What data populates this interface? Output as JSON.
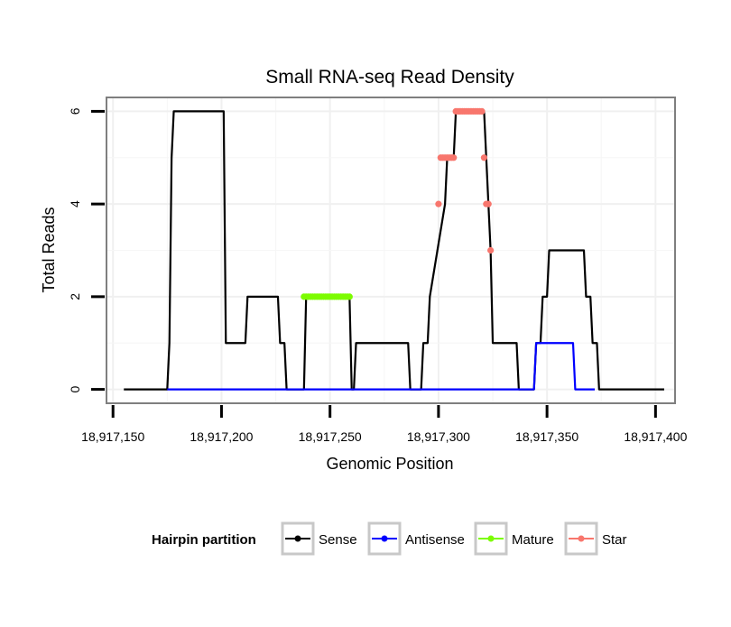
{
  "chart_data": {
    "type": "line",
    "title": "Small RNA-seq Read Density",
    "xlabel": "Genomic Position",
    "ylabel": "Total Reads",
    "xlim": [
      18917147,
      18917409
    ],
    "ylim": [
      -0.3,
      6.3
    ],
    "x_ticks": [
      18917150,
      18917200,
      18917250,
      18917300,
      18917350,
      18917400
    ],
    "x_tick_labels": [
      "18,917,150",
      "18,917,200",
      "18,917,250",
      "18,917,300",
      "18,917,350",
      "18,917,400"
    ],
    "y_ticks": [
      0,
      2,
      4,
      6
    ],
    "y_tick_labels": [
      "0",
      "2",
      "4",
      "6"
    ],
    "grid": true,
    "legend_title": "Hairpin partition",
    "legend_position": "bottom",
    "series": [
      {
        "name": "Sense",
        "color": "#000000",
        "style": "line",
        "x": [
          18917155,
          18917175,
          18917176,
          18917177,
          18917178,
          18917201,
          18917202,
          18917203,
          18917211,
          18917212,
          18917226,
          18917227,
          18917229,
          18917230,
          18917238,
          18917239,
          18917240,
          18917259,
          18917260,
          18917261,
          18917262,
          18917263,
          18917286,
          18917287,
          18917292,
          18917293,
          18917295,
          18917296,
          18917303,
          18917304,
          18917305,
          18917306,
          18917307,
          18917308,
          18917321,
          18917322,
          18917323,
          18917324,
          18917325,
          18917326,
          18917336,
          18917337,
          18917344,
          18917345,
          18917346,
          18917347,
          18917348,
          18917349,
          18917350,
          18917351,
          18917352,
          18917353,
          18917354,
          18917355,
          18917356,
          18917357,
          18917367,
          18917368,
          18917370,
          18917371,
          18917373,
          18917374,
          18917404
        ],
        "y": [
          0,
          0,
          1,
          5,
          6,
          6,
          1,
          1,
          1,
          2,
          2,
          1,
          1,
          0,
          0,
          2,
          2,
          2,
          0,
          0,
          1,
          1,
          1,
          0,
          0,
          1,
          1,
          2,
          4,
          5,
          5,
          5,
          5,
          6,
          6,
          5,
          4,
          3,
          1,
          1,
          1,
          0,
          0,
          1,
          1,
          1,
          2,
          2,
          2,
          3,
          3,
          3,
          3,
          3,
          3,
          3,
          3,
          2,
          2,
          1,
          1,
          0,
          0
        ]
      },
      {
        "name": "Antisense",
        "color": "#0000ff",
        "style": "line",
        "x": [
          18917175,
          18917344,
          18917345,
          18917362,
          18917363,
          18917372
        ],
        "y": [
          0,
          0,
          1,
          1,
          0,
          0
        ]
      },
      {
        "name": "Mature",
        "color": "#7cfc00",
        "style": "points",
        "x": [
          18917238,
          18917239,
          18917240,
          18917241,
          18917242,
          18917243,
          18917244,
          18917245,
          18917246,
          18917247,
          18917248,
          18917249,
          18917250,
          18917251,
          18917252,
          18917253,
          18917254,
          18917255,
          18917256,
          18917257,
          18917258,
          18917259
        ],
        "y": [
          2,
          2,
          2,
          2,
          2,
          2,
          2,
          2,
          2,
          2,
          2,
          2,
          2,
          2,
          2,
          2,
          2,
          2,
          2,
          2,
          2,
          2
        ]
      },
      {
        "name": "Star",
        "color": "#f8766d",
        "style": "points",
        "x": [
          18917300,
          18917301,
          18917302,
          18917303,
          18917304,
          18917305,
          18917306,
          18917307,
          18917308,
          18917309,
          18917310,
          18917311,
          18917312,
          18917313,
          18917314,
          18917315,
          18917316,
          18917317,
          18917318,
          18917319,
          18917320,
          18917321,
          18917322,
          18917323,
          18917324
        ],
        "y": [
          4,
          5,
          5,
          5,
          5,
          5,
          5,
          5,
          6,
          6,
          6,
          6,
          6,
          6,
          6,
          6,
          6,
          6,
          6,
          6,
          6,
          5,
          4,
          4,
          3
        ]
      }
    ]
  }
}
